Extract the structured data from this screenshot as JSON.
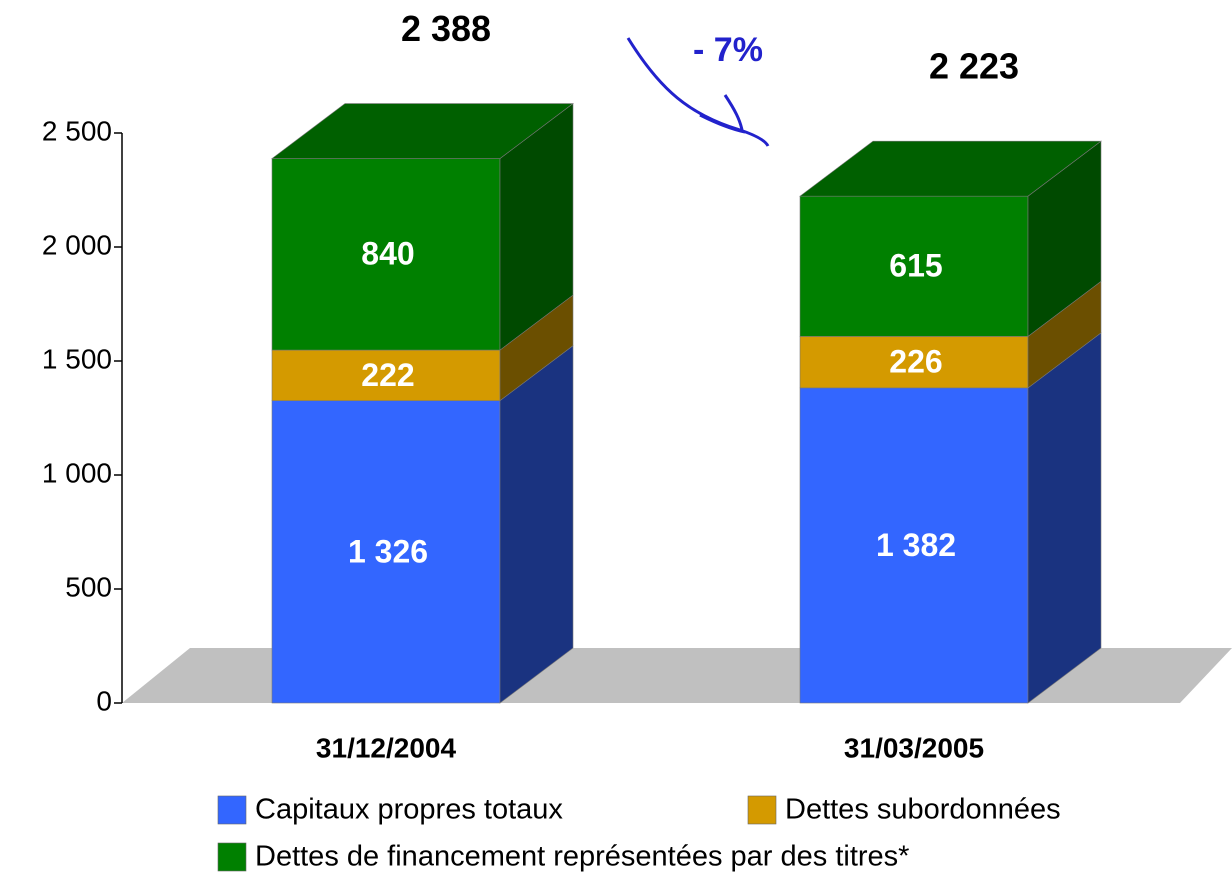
{
  "chart_data": {
    "type": "bar3d_stacked",
    "categories": [
      "31/12/2004",
      "31/03/2005"
    ],
    "series": [
      {
        "name": "Capitaux propres totaux",
        "color": "#3366ff",
        "side": "#1a3380",
        "top": "#2850cc",
        "values": [
          1326,
          1382
        ],
        "value_labels": [
          "1 326",
          "1 382"
        ]
      },
      {
        "name": "Dettes subordonnées",
        "color": "#d49a00",
        "side": "#6b4f00",
        "top": "#a07800",
        "values": [
          222,
          226
        ],
        "value_labels": [
          "222",
          "226"
        ]
      },
      {
        "name": "Dettes de financement représentées par des titres*",
        "color": "#008000",
        "side": "#004a00",
        "top": "#006000",
        "values": [
          840,
          615
        ],
        "value_labels": [
          "840",
          "615"
        ]
      }
    ],
    "totals": {
      "values": [
        2388,
        2223
      ],
      "value_labels": [
        "2 388",
        "2 223"
      ]
    },
    "annotation": "- 7%",
    "ylim": [
      0,
      2500
    ],
    "yticks": [
      0,
      500,
      {
        "value": 1000,
        "label": "1 000"
      },
      {
        "value": 1500,
        "label": "1 500"
      },
      {
        "value": 2000,
        "label": "2 000"
      },
      {
        "value": 2500,
        "label": "2 500"
      }
    ]
  }
}
